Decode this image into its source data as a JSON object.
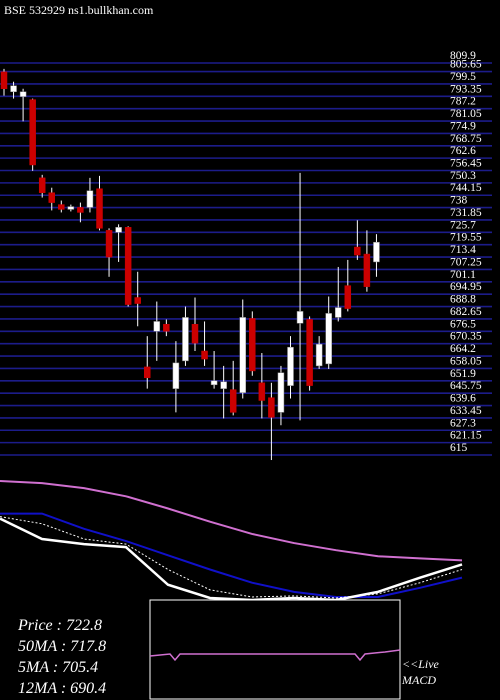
{
  "chart_data": [
    {
      "type": "candlestick",
      "title": "BSE 532929 ns1.bullkhan.com",
      "open": [
        805.5,
        795.6,
        793.2,
        791.7,
        752.8,
        745.4,
        739.5,
        737.1,
        738.1,
        738.1,
        747.4,
        726.7,
        725.7,
        728.2,
        693.3,
        658.8,
        676.5,
        680.0,
        648.0,
        661.8,
        680.0,
        666.7,
        649.9,
        648.0,
        647.5,
        646.0,
        682.9,
        650.9,
        643.5,
        636.2,
        649.5,
        680.5,
        682.4,
        659.3,
        660.3,
        683.4,
        699.2,
        718.4,
        714.9,
        711.0
      ],
      "high": [
        807.0,
        800.6,
        797.1,
        792.2,
        754.3,
        747.9,
        741.5,
        739.5,
        740.5,
        752.8,
        753.8,
        727.7,
        729.7,
        728.7,
        706.1,
        674.1,
        691.3,
        682.4,
        671.6,
        688.8,
        693.3,
        681.4,
        666.7,
        659.3,
        661.8,
        692.3,
        686.4,
        665.7,
        650.9,
        659.3,
        674.1,
        755.3,
        683.9,
        674.1,
        693.8,
        708.5,
        712.0,
        731.7,
        726.7,
        724.8
      ],
      "low": [
        793.7,
        792.2,
        780.9,
        756.3,
        743.0,
        736.6,
        735.6,
        736.1,
        730.7,
        735.6,
        726.7,
        703.6,
        711.0,
        688.8,
        679.0,
        648.0,
        661.8,
        674.1,
        636.2,
        659.3,
        666.7,
        659.3,
        648.0,
        633.2,
        634.7,
        643.1,
        654.4,
        633.2,
        612.5,
        629.8,
        643.1,
        632.2,
        647.0,
        657.8,
        657.8,
        681.4,
        686.4,
        712.0,
        696.2,
        703.6
      ],
      "close": [
        797.1,
        798.6,
        795.6,
        759.2,
        745.4,
        740.5,
        737.1,
        738.5,
        735.6,
        746.4,
        727.7,
        713.4,
        728.2,
        689.8,
        690.3,
        653.4,
        681.4,
        676.5,
        660.8,
        683.4,
        670.6,
        662.7,
        651.9,
        651.4,
        636.2,
        683.4,
        656.8,
        642.1,
        633.7,
        655.9,
        668.6,
        686.4,
        649.5,
        670.1,
        685.4,
        688.3,
        687.8,
        714.4,
        698.7,
        720.8
      ],
      "up_color": "#ffffff",
      "down_color": "#cc0000",
      "wick_color": "#ffffff",
      "grid_color": "#1c1c8a",
      "ylim": [
        615,
        809.9
      ],
      "yticks": [
        809.9,
        805.65,
        799.5,
        793.35,
        787.2,
        781.05,
        774.9,
        768.75,
        762.6,
        756.45,
        750.3,
        744.15,
        738,
        731.85,
        725.7,
        719.55,
        713.4,
        707.25,
        701.1,
        694.95,
        688.8,
        682.65,
        676.5,
        670.35,
        664.2,
        658.05,
        651.9,
        645.75,
        639.6,
        633.45,
        627.3,
        621.15,
        615
      ],
      "grid": true
    },
    {
      "type": "line",
      "series": [
        {
          "name": "50MA",
          "color": "#d070d0",
          "values": [
            117,
            115,
            110,
            102,
            90,
            77,
            65,
            56,
            49,
            43,
            41,
            39
          ]
        },
        {
          "name": "12MA",
          "color": "#1010c8",
          "values": [
            85,
            85,
            70,
            58,
            44,
            30,
            17,
            8,
            3,
            3,
            12,
            22
          ]
        },
        {
          "name": "Price",
          "color": "#ffffff",
          "values": [
            80,
            60,
            55,
            52,
            15,
            2,
            0,
            2,
            0,
            8,
            22,
            35
          ]
        },
        {
          "name": "5MA",
          "color": "#ffffff",
          "dashed": true,
          "values": [
            82,
            75,
            60,
            55,
            30,
            10,
            3,
            4,
            2,
            6,
            17,
            30
          ]
        }
      ],
      "ylim": [
        0,
        120
      ],
      "indicators": [
        "Price   : 722.8",
        "50MA  : 717.8",
        "5MA  : 705.4",
        "12MA  : 690.4"
      ],
      "macd_label": [
        "<<Live",
        "MACD"
      ]
    }
  ]
}
